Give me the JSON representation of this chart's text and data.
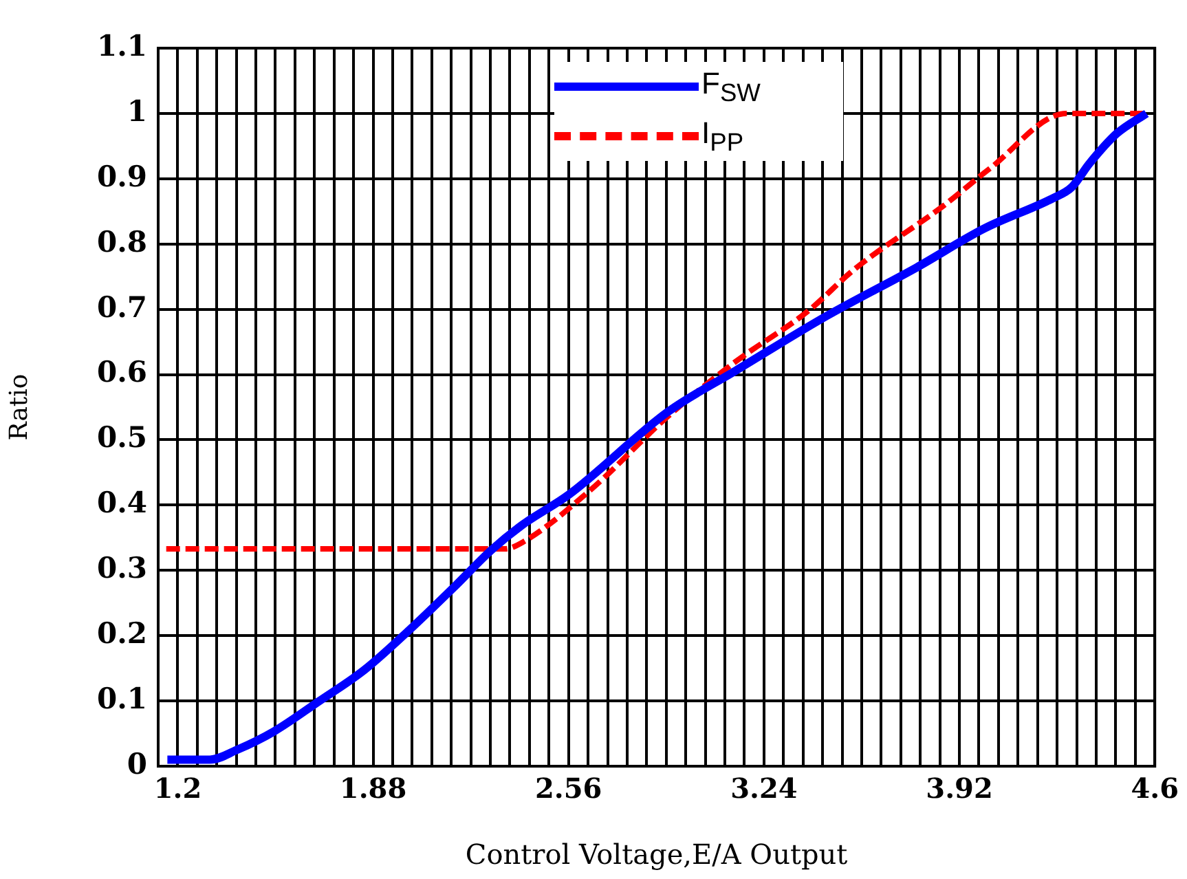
{
  "chart_data": {
    "type": "line",
    "xlabel": "Control Voltage,E/A Output",
    "ylabel": "Ratio",
    "xlim": [
      1.132,
      4.6
    ],
    "xticks": [
      {
        "value": 1.132,
        "label": null
      },
      1.2,
      {
        "value": 1.268,
        "label": null
      },
      {
        "value": 1.336,
        "label": null
      },
      {
        "value": 1.404,
        "label": null
      },
      {
        "value": 1.472,
        "label": null
      },
      {
        "value": 1.54,
        "label": null
      },
      {
        "value": 1.608,
        "label": null
      },
      {
        "value": 1.676,
        "label": null
      },
      {
        "value": 1.744,
        "label": null
      },
      {
        "value": 1.812,
        "label": null
      },
      1.88,
      {
        "value": 1.948,
        "label": null
      },
      {
        "value": 2.016,
        "label": null
      },
      {
        "value": 2.084,
        "label": null
      },
      {
        "value": 2.152,
        "label": null
      },
      {
        "value": 2.22,
        "label": null
      },
      {
        "value": 2.288,
        "label": null
      },
      {
        "value": 2.356,
        "label": null
      },
      {
        "value": 2.424,
        "label": null
      },
      {
        "value": 2.492,
        "label": null
      },
      2.56,
      {
        "value": 2.628,
        "label": null
      },
      {
        "value": 2.696,
        "label": null
      },
      {
        "value": 2.764,
        "label": null
      },
      {
        "value": 2.832,
        "label": null
      },
      {
        "value": 2.9,
        "label": null
      },
      {
        "value": 2.968,
        "label": null
      },
      {
        "value": 3.036,
        "label": null
      },
      {
        "value": 3.104,
        "label": null
      },
      {
        "value": 3.172,
        "label": null
      },
      3.24,
      {
        "value": 3.308,
        "label": null
      },
      {
        "value": 3.376,
        "label": null
      },
      {
        "value": 3.444,
        "label": null
      },
      {
        "value": 3.512,
        "label": null
      },
      {
        "value": 3.58,
        "label": null
      },
      {
        "value": 3.648,
        "label": null
      },
      {
        "value": 3.716,
        "label": null
      },
      {
        "value": 3.784,
        "label": null
      },
      {
        "value": 3.852,
        "label": null
      },
      3.92,
      {
        "value": 3.988,
        "label": null
      },
      {
        "value": 4.056,
        "label": null
      },
      {
        "value": 4.124,
        "label": null
      },
      {
        "value": 4.192,
        "label": null
      },
      {
        "value": 4.26,
        "label": null
      },
      {
        "value": 4.328,
        "label": null
      },
      {
        "value": 4.396,
        "label": null
      },
      {
        "value": 4.464,
        "label": null
      },
      {
        "value": 4.532,
        "label": null
      },
      4.6
    ],
    "ylim": [
      0,
      1.1
    ],
    "yticks": [
      0,
      0.1,
      0.2,
      0.3,
      0.4,
      0.5,
      0.6,
      0.7,
      0.8,
      0.9,
      1,
      1.1
    ],
    "grid": true,
    "legend": "top",
    "marker": "none",
    "series": [
      {
        "name": "F$_{SW}$",
        "color": "#0000ff",
        "line_style": "solid",
        "x": [
          1.164,
          1.312,
          1.406,
          1.534,
          1.69,
          1.851,
          2.007,
          2.163,
          2.291,
          2.4,
          2.561,
          2.906,
          3.142,
          3.459,
          3.771,
          4.008,
          4.245,
          4.311,
          4.372,
          4.467,
          4.571
        ],
        "values": [
          0.01,
          0.01,
          0.025,
          0.053,
          0.099,
          0.148,
          0.209,
          0.275,
          0.331,
          0.37,
          0.416,
          0.543,
          0.606,
          0.69,
          0.764,
          0.824,
          0.87,
          0.887,
          0.923,
          0.969,
          1
        ]
      },
      {
        "name": "I$_{PP}$",
        "color": "#ff0000",
        "line_style": "dashed",
        "x": [
          1.16,
          2.338,
          2.4,
          2.636,
          2.906,
          3.142,
          3.393,
          3.554,
          3.866,
          4.027,
          4.292,
          4.571
        ],
        "values": [
          0.333,
          0.333,
          0.343,
          0.423,
          0.536,
          0.62,
          0.697,
          0.761,
          0.859,
          0.916,
          1,
          1
        ]
      }
    ]
  }
}
